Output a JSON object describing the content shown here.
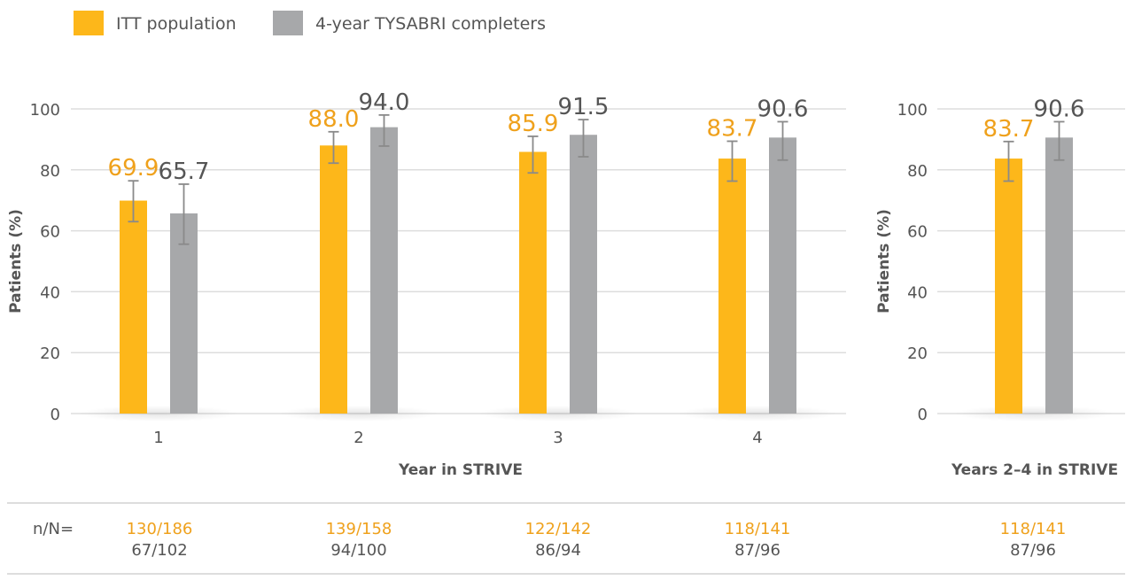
{
  "colors": {
    "itt": "#FDB71A",
    "completers": "#A7A8AA",
    "itt_text": "#EFA11C",
    "completers_text": "#555555",
    "grid": "#DDDDDD"
  },
  "legend": {
    "itt": "ITT population",
    "completers": "4-year TYSABRI completers"
  },
  "nn_label": "n/N=",
  "chart_data": [
    {
      "type": "bar",
      "categories": [
        "1",
        "2",
        "3",
        "4"
      ],
      "series": [
        {
          "name": "ITT population",
          "values": [
            69.9,
            88.0,
            85.9,
            83.7
          ],
          "error_low": [
            63.0,
            82.2,
            79.0,
            76.3
          ],
          "error_high": [
            76.4,
            92.5,
            91.0,
            89.4
          ]
        },
        {
          "name": "4-year TYSABRI completers",
          "values": [
            65.7,
            94.0,
            91.5,
            90.6
          ],
          "error_low": [
            55.6,
            87.8,
            84.3,
            83.2
          ],
          "error_high": [
            75.3,
            98.0,
            96.5,
            95.8
          ]
        }
      ],
      "labels_itt": [
        "69.9",
        "88.0",
        "85.9",
        "83.7"
      ],
      "labels_completers": [
        "65.7",
        "94.0",
        "91.5",
        "90.6"
      ],
      "xlabel": "Year in STRIVE",
      "ylabel": "Patients (%)",
      "ylim": [
        0,
        100
      ],
      "yticks": [
        "0",
        "20",
        "40",
        "60",
        "80",
        "100"
      ],
      "nn_itt": [
        "130/186",
        "139/158",
        "122/142",
        "118/141"
      ],
      "nn_completers": [
        "67/102",
        "94/100",
        "86/94",
        "87/96"
      ],
      "grid": true
    },
    {
      "type": "bar",
      "categories": [
        ""
      ],
      "series": [
        {
          "name": "ITT population",
          "values": [
            83.7
          ],
          "error_low": [
            76.3
          ],
          "error_high": [
            89.3
          ]
        },
        {
          "name": "4-year TYSABRI completers",
          "values": [
            90.6
          ],
          "error_low": [
            83.2
          ],
          "error_high": [
            95.8
          ]
        }
      ],
      "labels_itt": [
        "83.7"
      ],
      "labels_completers": [
        "90.6"
      ],
      "xlabel": "Years 2–4 in STRIVE",
      "ylabel": "Patients (%)",
      "ylim": [
        0,
        100
      ],
      "yticks": [
        "0",
        "20",
        "40",
        "60",
        "80",
        "100"
      ],
      "nn_itt": [
        "118/141"
      ],
      "nn_completers": [
        "87/96"
      ],
      "grid": true
    }
  ]
}
